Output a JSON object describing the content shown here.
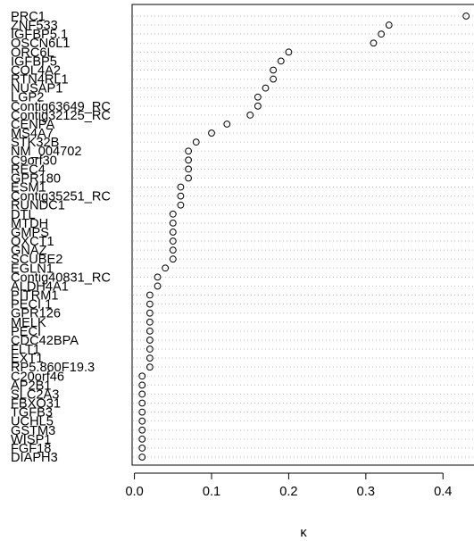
{
  "chart_data": {
    "type": "scatter",
    "subtype": "dot-chart",
    "title": "",
    "xlabel": "κ",
    "ylabel": "",
    "xlim": [
      -0.003,
      0.446
    ],
    "x_ticks": [
      0.0,
      0.1,
      0.2,
      0.3,
      0.4
    ],
    "x_tick_labels": [
      "0.0",
      "0.1",
      "0.2",
      "0.3",
      "0.4"
    ],
    "grid": "dotted horizontal guide line per row",
    "marker": "open circle",
    "colors": {
      "marker": "#000000",
      "guide": "#bebebe",
      "axis": "#000000"
    },
    "points": [
      {
        "label": "PRC1",
        "value": 0.43
      },
      {
        "label": "ZNF533",
        "value": 0.33
      },
      {
        "label": "IGFBP5.1",
        "value": 0.32
      },
      {
        "label": "OSCN6L1",
        "value": 0.31
      },
      {
        "label": "ORC6L",
        "value": 0.2
      },
      {
        "label": "IGFBP5",
        "value": 0.19
      },
      {
        "label": "COL4A2",
        "value": 0.18
      },
      {
        "label": "RTN4RL1",
        "value": 0.18
      },
      {
        "label": "NUSAP1",
        "value": 0.17
      },
      {
        "label": "LGP2",
        "value": 0.16
      },
      {
        "label": "Contig63649_RC",
        "value": 0.16
      },
      {
        "label": "Contig32125_RC",
        "value": 0.15
      },
      {
        "label": "CENPA",
        "value": 0.12
      },
      {
        "label": "MS4A7",
        "value": 0.1
      },
      {
        "label": "STK32B",
        "value": 0.08
      },
      {
        "label": "NM_004702",
        "value": 0.07
      },
      {
        "label": "C9orf30",
        "value": 0.07
      },
      {
        "label": "REC4",
        "value": 0.07
      },
      {
        "label": "GPR180",
        "value": 0.07
      },
      {
        "label": "ESM1",
        "value": 0.06
      },
      {
        "label": "Contig35251_RC",
        "value": 0.06
      },
      {
        "label": "RUNDC1",
        "value": 0.06
      },
      {
        "label": "DTL",
        "value": 0.05
      },
      {
        "label": "MTDH",
        "value": 0.05
      },
      {
        "label": "GMPS",
        "value": 0.05
      },
      {
        "label": "OXCT1",
        "value": 0.05
      },
      {
        "label": "GNAZ",
        "value": 0.05
      },
      {
        "label": "SCUBE2",
        "value": 0.05
      },
      {
        "label": "EGLN1",
        "value": 0.04
      },
      {
        "label": "Contig40831_RC",
        "value": 0.03
      },
      {
        "label": "ALDH4A1",
        "value": 0.03
      },
      {
        "label": "PITRM1",
        "value": 0.02
      },
      {
        "label": "PECI.1",
        "value": 0.02
      },
      {
        "label": "GPR126",
        "value": 0.02
      },
      {
        "label": "MELK",
        "value": 0.02
      },
      {
        "label": "PECI",
        "value": 0.02
      },
      {
        "label": "CDC42BPA",
        "value": 0.02
      },
      {
        "label": "FLT1",
        "value": 0.02
      },
      {
        "label": "EXT1",
        "value": 0.02
      },
      {
        "label": "RP5.860F19.3",
        "value": 0.02
      },
      {
        "label": "C20orf46",
        "value": 0.01
      },
      {
        "label": "AP2B1",
        "value": 0.01
      },
      {
        "label": "SLC2A3",
        "value": 0.01
      },
      {
        "label": "FBXO31",
        "value": 0.01
      },
      {
        "label": "TGFB3",
        "value": 0.01
      },
      {
        "label": "UCHL5",
        "value": 0.01
      },
      {
        "label": "GSTM3",
        "value": 0.01
      },
      {
        "label": "WISP1",
        "value": 0.01
      },
      {
        "label": "FGF18",
        "value": 0.01
      },
      {
        "label": "DIAPH3",
        "value": 0.01
      }
    ]
  }
}
